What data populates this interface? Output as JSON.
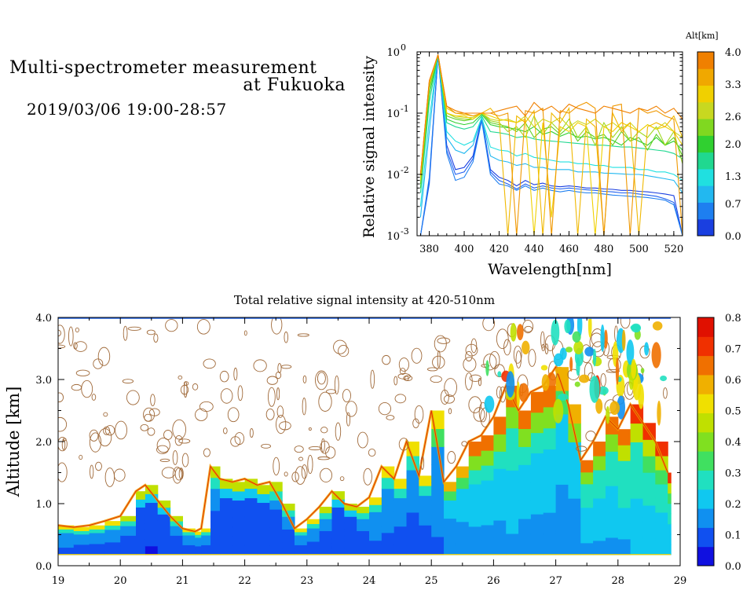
{
  "header": {
    "title_line1": "Multi-spectrometer measurement",
    "title_line2": "at Fukuoka",
    "date_range": "2019/03/06 19:00-28:57"
  },
  "colors": {
    "alt_scale": [
      "#1a3fe0",
      "#1e7ff0",
      "#22b8f0",
      "#20e0e0",
      "#20d890",
      "#30d030",
      "#80d820",
      "#c8d820",
      "#f0d000",
      "#f0a800",
      "#f08000"
    ],
    "intensity_scale": [
      "#1010e0",
      "#1050f0",
      "#1090f0",
      "#10c8f0",
      "#20e0c0",
      "#40e060",
      "#80e020",
      "#c0e000",
      "#f0e000",
      "#f0b000",
      "#f07000",
      "#f03000",
      "#e01000"
    ]
  },
  "chart_data": [
    {
      "type": "line",
      "xlabel": "Wavelength[nm]",
      "ylabel": "Relative signal intensity",
      "yscale": "log",
      "xlim": [
        373,
        525
      ],
      "ylim": [
        0.001,
        1
      ],
      "xticks": [
        "380",
        "400",
        "420",
        "440",
        "460",
        "480",
        "500",
        "520"
      ],
      "yticks": [
        "10",
        "10",
        "10",
        "10"
      ],
      "ytick_exponents": [
        "0",
        "-1",
        "-2",
        "-3"
      ],
      "colorbar": {
        "title": "Alt[km]",
        "ticks": [
          "4.0",
          "3.3",
          "2.6",
          "2.0",
          "1.3",
          "0.7",
          "0.0"
        ],
        "range": [
          0.0,
          4.0
        ]
      },
      "x": [
        375,
        380,
        385,
        390,
        395,
        400,
        405,
        410,
        415,
        420,
        425,
        430,
        435,
        440,
        445,
        450,
        455,
        460,
        465,
        470,
        475,
        480,
        485,
        490,
        495,
        500,
        505,
        510,
        515,
        520,
        525
      ],
      "series": [
        {
          "alt": 0.0,
          "color": "#1a3fe0",
          "values": [
            0.001,
            0.008,
            0.9,
            0.03,
            0.012,
            0.013,
            0.02,
            0.085,
            0.012,
            0.009,
            0.008,
            0.0065,
            0.008,
            0.0068,
            0.0072,
            0.0065,
            0.0063,
            0.0065,
            0.0063,
            0.006,
            0.006,
            0.0058,
            0.0057,
            0.0055,
            0.0055,
            0.0053,
            0.0052,
            0.005,
            0.0048,
            0.0045,
            0.001
          ]
        },
        {
          "alt": 0.2,
          "color": "#1e5ff0",
          "values": [
            0.001,
            0.007,
            0.88,
            0.025,
            0.01,
            0.011,
            0.018,
            0.08,
            0.011,
            0.008,
            0.007,
            0.0058,
            0.007,
            0.006,
            0.0065,
            0.006,
            0.0058,
            0.006,
            0.0058,
            0.0056,
            0.0055,
            0.0053,
            0.0052,
            0.005,
            0.005,
            0.0048,
            0.0046,
            0.0044,
            0.004,
            0.0035,
            0.001
          ]
        },
        {
          "alt": 0.4,
          "color": "#1e7ff0",
          "values": [
            0.001,
            0.009,
            0.9,
            0.022,
            0.008,
            0.009,
            0.016,
            0.075,
            0.01,
            0.007,
            0.0065,
            0.0055,
            0.0065,
            0.0055,
            0.006,
            0.0055,
            0.0052,
            0.0055,
            0.0052,
            0.005,
            0.005,
            0.0048,
            0.0046,
            0.0045,
            0.0044,
            0.0043,
            0.0042,
            0.004,
            0.0038,
            0.0032,
            0.001
          ]
        },
        {
          "alt": 0.7,
          "color": "#22b8f0",
          "values": [
            0.002,
            0.05,
            0.9,
            0.04,
            0.025,
            0.022,
            0.03,
            0.085,
            0.02,
            0.017,
            0.016,
            0.014,
            0.015,
            0.013,
            0.013,
            0.012,
            0.012,
            0.012,
            0.011,
            0.011,
            0.011,
            0.0105,
            0.0104,
            0.0102,
            0.01,
            0.01,
            0.0095,
            0.009,
            0.0085,
            0.008,
            0.005
          ]
        },
        {
          "alt": 1.0,
          "color": "#20e0e0",
          "values": [
            0.003,
            0.08,
            0.9,
            0.05,
            0.035,
            0.03,
            0.035,
            0.085,
            0.028,
            0.025,
            0.024,
            0.02,
            0.022,
            0.019,
            0.018,
            0.017,
            0.016,
            0.016,
            0.015,
            0.015,
            0.014,
            0.014,
            0.013,
            0.013,
            0.013,
            0.012,
            0.012,
            0.011,
            0.011,
            0.01,
            0.008
          ]
        },
        {
          "alt": 1.3,
          "color": "#20d890",
          "values": [
            0.005,
            0.15,
            0.9,
            0.07,
            0.06,
            0.055,
            0.06,
            0.09,
            0.05,
            0.048,
            0.045,
            0.04,
            0.042,
            0.038,
            0.036,
            0.035,
            0.034,
            0.033,
            0.032,
            0.031,
            0.03,
            0.03,
            0.029,
            0.028,
            0.028,
            0.027,
            0.026,
            0.025,
            0.024,
            0.022,
            0.018
          ]
        },
        {
          "alt": 1.7,
          "color": "#30d030",
          "values": [
            0.006,
            0.2,
            0.9,
            0.08,
            0.07,
            0.065,
            0.07,
            0.095,
            0.065,
            0.06,
            0.058,
            0.055,
            0.05,
            0.06,
            0.045,
            0.05,
            0.042,
            0.048,
            0.04,
            0.042,
            0.038,
            0.04,
            0.036,
            0.03,
            0.04,
            0.035,
            0.03,
            0.04,
            0.03,
            0.035,
            0.025
          ]
        },
        {
          "alt": 2.0,
          "color": "#60d020",
          "values": [
            0.007,
            0.25,
            0.9,
            0.09,
            0.08,
            0.075,
            0.08,
            0.1,
            0.07,
            0.065,
            0.06,
            0.05,
            0.07,
            0.04,
            0.055,
            0.06,
            0.045,
            0.06,
            0.035,
            0.05,
            0.04,
            0.045,
            0.03,
            0.05,
            0.035,
            0.04,
            0.025,
            0.045,
            0.03,
            0.04,
            0.02
          ]
        },
        {
          "alt": 2.3,
          "color": "#a0d820",
          "values": [
            0.008,
            0.28,
            0.9,
            0.1,
            0.085,
            0.08,
            0.08,
            0.1,
            0.075,
            0.07,
            0.05,
            0.06,
            0.04,
            0.09,
            0.045,
            0.07,
            0.05,
            0.08,
            0.04,
            0.06,
            0.03,
            0.07,
            0.04,
            0.06,
            0.035,
            0.05,
            0.04,
            0.06,
            0.03,
            0.05,
            0.015
          ]
        },
        {
          "alt": 2.6,
          "color": "#d0d820",
          "values": [
            0.008,
            0.3,
            0.9,
            0.1,
            0.09,
            0.085,
            0.085,
            0.1,
            0.08,
            0.075,
            0.08,
            0.07,
            0.09,
            0.06,
            0.08,
            0.07,
            0.085,
            0.06,
            0.075,
            0.065,
            0.08,
            0.06,
            0.07,
            0.055,
            0.07,
            0.05,
            0.065,
            0.055,
            0.07,
            0.05,
            0.04
          ]
        },
        {
          "alt": 3.0,
          "color": "#f0d000",
          "values": [
            0.009,
            0.32,
            0.9,
            0.1,
            0.09,
            0.09,
            0.08,
            0.1,
            0.09,
            0.08,
            0.075,
            0.07,
            0.08,
            0.001,
            0.07,
            0.002,
            0.06,
            0.05,
            0.07,
            0.06,
            0.001,
            0.06,
            0.05,
            0.07,
            0.06,
            0.05,
            0.065,
            0.055,
            0.06,
            0.05,
            0.03
          ]
        },
        {
          "alt": 3.3,
          "color": "#f0b800",
          "values": [
            0.01,
            0.33,
            0.9,
            0.12,
            0.1,
            0.095,
            0.09,
            0.1,
            0.12,
            0.08,
            0.001,
            0.09,
            0.07,
            0.11,
            0.001,
            0.1,
            0.07,
            0.12,
            0.001,
            0.08,
            0.06,
            0.001,
            0.1,
            0.05,
            0.07,
            0.001,
            0.06,
            0.07,
            0.06,
            0.09,
            0.04
          ]
        },
        {
          "alt": 3.6,
          "color": "#f09800",
          "values": [
            0.01,
            0.33,
            0.9,
            0.13,
            0.1,
            0.1,
            0.09,
            0.1,
            0.1,
            0.09,
            0.1,
            0.001,
            0.11,
            0.1,
            0.12,
            0.001,
            0.11,
            0.1,
            0.13,
            0.15,
            0.12,
            0.001,
            0.13,
            0.14,
            0.001,
            0.12,
            0.1,
            0.11,
            0.09,
            0.08,
            0.001
          ]
        },
        {
          "alt": 4.0,
          "color": "#f08000",
          "values": [
            0.01,
            0.34,
            0.9,
            0.13,
            0.11,
            0.1,
            0.1,
            0.1,
            0.1,
            0.11,
            0.12,
            0.13,
            0.09,
            0.15,
            0.11,
            0.13,
            0.1,
            0.14,
            0.12,
            0.11,
            0.1,
            0.13,
            0.12,
            0.11,
            0.1,
            0.12,
            0.11,
            0.13,
            0.1,
            0.12,
            0.08
          ]
        }
      ]
    },
    {
      "type": "heatmap",
      "title": "Total relative signal intensity at 420-510nm",
      "ylabel": "Altitude [km]",
      "xlim": [
        19,
        29
      ],
      "ylim": [
        0.0,
        4.0
      ],
      "xticks": [
        "19",
        "20",
        "21",
        "22",
        "23",
        "24",
        "25",
        "26",
        "27",
        "28",
        "29"
      ],
      "yticks": [
        "0.0",
        "1.0",
        "2.0",
        "3.0",
        "4.0"
      ],
      "colorbar": {
        "ticks": [
          "0.8",
          "0.7",
          "0.6",
          "0.5",
          "0.4",
          "0.3",
          "0.2",
          "0.1",
          "0.0"
        ],
        "range": [
          0.0,
          0.8
        ]
      },
      "time": [
        19.0,
        19.25,
        19.5,
        19.75,
        20.0,
        20.25,
        20.4,
        20.6,
        20.8,
        21.0,
        21.2,
        21.3,
        21.45,
        21.6,
        21.8,
        22.0,
        22.2,
        22.4,
        22.6,
        22.8,
        23.0,
        23.2,
        23.4,
        23.6,
        23.8,
        24.0,
        24.2,
        24.4,
        24.6,
        24.8,
        25.0,
        25.2,
        25.4,
        25.6,
        25.8,
        26.0,
        26.2,
        26.4,
        26.6,
        26.8,
        27.0,
        27.2,
        27.4,
        27.6,
        27.8,
        28.0,
        28.2,
        28.4,
        28.6,
        28.8
      ],
      "boundary_layer_top_km": [
        0.65,
        0.62,
        0.65,
        0.72,
        0.8,
        1.2,
        1.3,
        1.05,
        0.8,
        0.6,
        0.55,
        0.6,
        1.6,
        1.4,
        1.35,
        1.4,
        1.3,
        1.35,
        1.0,
        0.6,
        0.75,
        0.95,
        1.2,
        1.0,
        0.95,
        1.1,
        1.6,
        1.4,
        2.0,
        1.45,
        2.5,
        1.35,
        1.6,
        2.0,
        2.1,
        2.4,
        2.9,
        2.5,
        2.8,
        2.9,
        3.2,
        2.6,
        1.7,
        2.0,
        2.4,
        2.2,
        2.6,
        2.3,
        2.0,
        1.5
      ],
      "boundary_layer_mean_intensity": [
        0.15,
        0.14,
        0.14,
        0.13,
        0.12,
        0.1,
        0.08,
        0.1,
        0.12,
        0.13,
        0.14,
        0.14,
        0.12,
        0.1,
        0.1,
        0.1,
        0.1,
        0.11,
        0.12,
        0.14,
        0.14,
        0.12,
        0.1,
        0.1,
        0.12,
        0.15,
        0.15,
        0.14,
        0.13,
        0.14,
        0.16,
        0.18,
        0.2,
        0.22,
        0.22,
        0.22,
        0.24,
        0.23,
        0.22,
        0.22,
        0.2,
        0.21,
        0.24,
        0.24,
        0.25,
        0.26,
        0.27,
        0.28,
        0.28,
        0.28
      ]
    }
  ]
}
